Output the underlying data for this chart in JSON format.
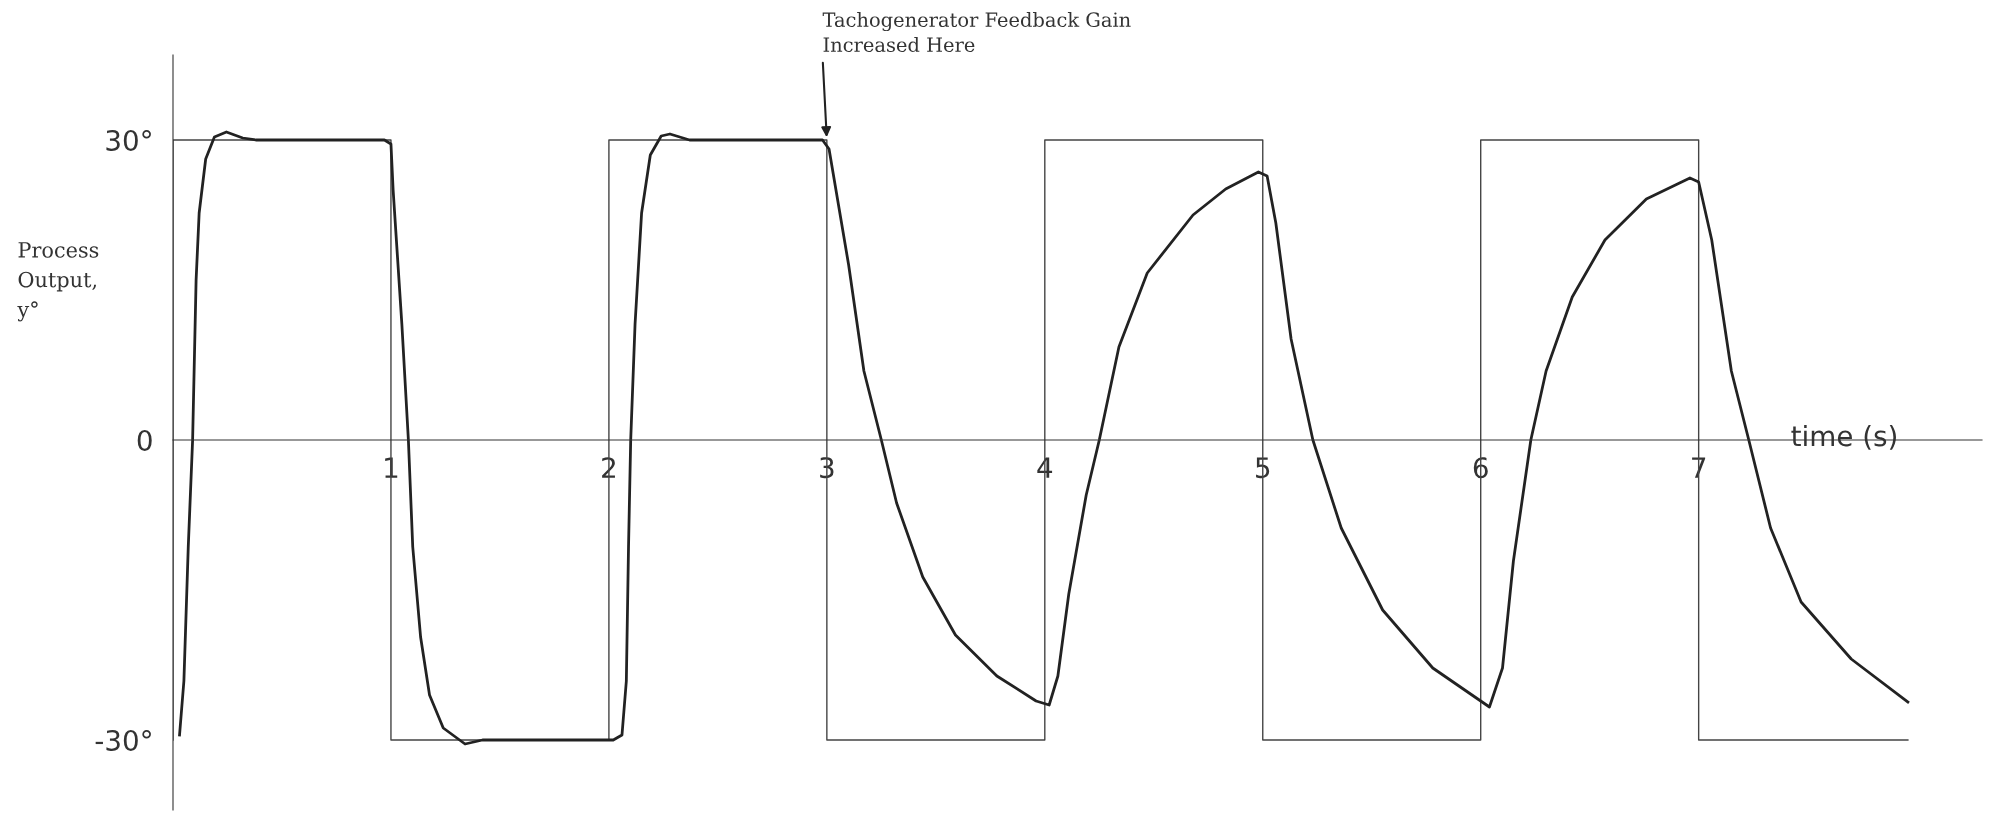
{
  "chart_data": {
    "type": "line",
    "xlabel": "time (s)",
    "ylabel": "Process\nOutput,\ny°",
    "xlim": [
      0,
      8.3
    ],
    "ylim": [
      -37,
      38.5
    ],
    "xticks": [
      1,
      2,
      3,
      4,
      5,
      6,
      7
    ],
    "yticks": [
      {
        "value": -30,
        "label": "-30°"
      },
      0,
      {
        "value": 30,
        "label": "30°"
      }
    ],
    "grid": false,
    "annotations": [
      {
        "text": "Tachogenerator Feedback Gain\nIncreased Here",
        "x": 3,
        "y": 30
      }
    ],
    "series": [
      {
        "color": "#444444",
        "x": [
          0,
          0,
          1,
          1,
          2,
          2,
          3,
          3,
          4,
          4,
          5,
          5,
          6,
          6,
          7,
          7,
          7.96
        ],
        "values": [
          -30,
          30,
          30,
          -30,
          -30,
          30,
          30,
          -30,
          -30,
          30,
          30,
          -30,
          -30,
          30,
          30,
          -30,
          -30
        ]
      },
      {
        "color": "#222222",
        "x": [
          0.03,
          0.05,
          0.07,
          0.09,
          0.106,
          0.12,
          0.15,
          0.19,
          0.245,
          0.32,
          0.38,
          0.97,
          1.0,
          1.01,
          1.05,
          1.08,
          1.1,
          1.136,
          1.177,
          1.24,
          1.34,
          1.42,
          2.02,
          2.06,
          2.08,
          2.09,
          2.1,
          2.12,
          2.15,
          2.19,
          2.24,
          2.28,
          2.37,
          2.98,
          3.01,
          3.1,
          3.17,
          3.25,
          3.32,
          3.44,
          3.59,
          3.78,
          3.96,
          4.02,
          4.06,
          4.11,
          4.19,
          4.25,
          4.34,
          4.47,
          4.68,
          4.83,
          4.98,
          5.02,
          5.06,
          5.13,
          5.23,
          5.36,
          5.55,
          5.78,
          6.0,
          6.04,
          6.1,
          6.15,
          6.23,
          6.3,
          6.42,
          6.57,
          6.76,
          6.96,
          7.0,
          7.06,
          7.15,
          7.23,
          7.33,
          7.47,
          7.7,
          7.96
        ],
        "values": [
          -29.5,
          -24.1,
          -10.7,
          0,
          16,
          22.7,
          28.1,
          30.3,
          30.8,
          30.2,
          30,
          30,
          29.6,
          25,
          11.6,
          0,
          -10.7,
          -19.7,
          -25.5,
          -28.8,
          -30.4,
          -30,
          -30,
          -29.5,
          -24.1,
          -10.7,
          0,
          11.6,
          22.7,
          28.5,
          30.4,
          30.6,
          30,
          30,
          29.1,
          17.5,
          6.9,
          0,
          -6.3,
          -13.7,
          -19.5,
          -23.6,
          -26.1,
          -26.5,
          -23.6,
          -15.4,
          -5.5,
          0,
          9.3,
          16.7,
          22.5,
          25.1,
          26.8,
          26.4,
          21.7,
          10.1,
          0,
          -8.8,
          -17,
          -22.8,
          -26.1,
          -26.7,
          -22.8,
          -12.1,
          0,
          6.9,
          14.3,
          20,
          24.1,
          26.2,
          25.8,
          20,
          6.9,
          0,
          -8.8,
          -16.2,
          -21.9,
          -26.2
        ]
      }
    ]
  }
}
